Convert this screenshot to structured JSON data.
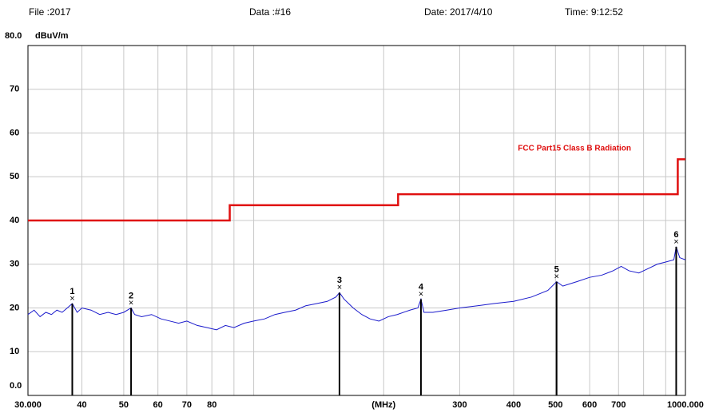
{
  "header": {
    "file": "File :2017",
    "data": "Data :#16",
    "date": "Date: 2017/4/10",
    "time": "Time: 9:12:52"
  },
  "chart_data": {
    "type": "line",
    "ylabel": "dBuV/m",
    "xscale": "log",
    "xlim": [
      30,
      1000
    ],
    "ylim": [
      0,
      80
    ],
    "yticks": [
      {
        "value": 0,
        "label": "0.0"
      },
      10,
      20,
      30,
      40,
      50,
      60,
      70,
      {
        "value": 80,
        "label": "80.0"
      }
    ],
    "xticks": [
      {
        "value": 30,
        "label": "30.000"
      },
      40,
      50,
      60,
      70,
      80,
      {
        "value": 90,
        "label": null
      },
      {
        "value": 100,
        "label": null
      },
      {
        "value": 200,
        "label": "(MHz)"
      },
      300,
      400,
      500,
      600,
      700,
      {
        "value": 800,
        "label": null
      },
      {
        "value": 900,
        "label": null
      },
      {
        "value": 1000,
        "label": "1000.000"
      }
    ],
    "grid": true,
    "limit": {
      "name": "FCC Part15 Class B Radiation",
      "color": "#e01010",
      "x": [
        30,
        88,
        88,
        216,
        216,
        960,
        960,
        1000
      ],
      "values": [
        40,
        40,
        43.5,
        43.5,
        46,
        46,
        54,
        54
      ]
    },
    "trace": {
      "color": "#1a1acc",
      "x": [
        30,
        31,
        32,
        33,
        34,
        35,
        36,
        37,
        38,
        39,
        40,
        42,
        44,
        46,
        48,
        50,
        52,
        53,
        55,
        58,
        61,
        64,
        67,
        70,
        74,
        78,
        82,
        86,
        90,
        95,
        100,
        106,
        112,
        118,
        125,
        132,
        140,
        148,
        155,
        158,
        162,
        170,
        178,
        186,
        195,
        205,
        215,
        230,
        240,
        244,
        248,
        260,
        280,
        300,
        330,
        360,
        400,
        440,
        480,
        503,
        520,
        560,
        600,
        640,
        680,
        710,
        740,
        780,
        820,
        860,
        900,
        940,
        952,
        970,
        1000
      ],
      "values": [
        18.5,
        19.5,
        18,
        19,
        18.5,
        19.5,
        19,
        20,
        21,
        19,
        20,
        19.5,
        18.5,
        19,
        18.5,
        19,
        20,
        18.5,
        18,
        18.5,
        17.5,
        17,
        16.5,
        17,
        16,
        15.5,
        15,
        16,
        15.5,
        16.5,
        17,
        17.5,
        18.5,
        19,
        19.5,
        20.5,
        21,
        21.5,
        22.5,
        23.5,
        22,
        20,
        18.5,
        17.5,
        17,
        18,
        18.5,
        19.5,
        20,
        22,
        19,
        19,
        19.5,
        20,
        20.5,
        21,
        21.5,
        22.5,
        24,
        26,
        25,
        26,
        27,
        27.5,
        28.5,
        29.5,
        28.5,
        28,
        29,
        30,
        30.5,
        31,
        34,
        31.5,
        31
      ]
    },
    "markers": {
      "labels": [
        "1",
        "2",
        "3",
        "4",
        "5",
        "6"
      ],
      "x": [
        38,
        52,
        158,
        244,
        503,
        952
      ],
      "values": [
        21,
        20,
        23.5,
        22,
        26,
        34
      ]
    }
  }
}
